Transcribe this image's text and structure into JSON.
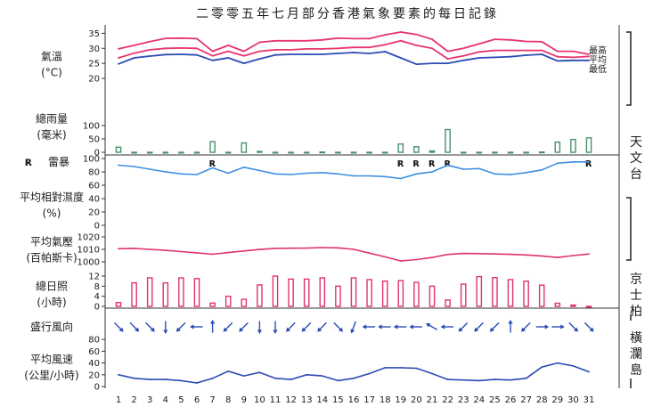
{
  "chart_data": {
    "type": "line",
    "title": "二零零五年七月部分香港氣象要素的每日記錄",
    "days": [
      1,
      2,
      3,
      4,
      5,
      6,
      7,
      8,
      9,
      10,
      11,
      12,
      13,
      14,
      15,
      16,
      17,
      18,
      19,
      20,
      21,
      22,
      23,
      24,
      25,
      26,
      27,
      28,
      29,
      30,
      31
    ],
    "station_labels": {
      "observatory": "天文台",
      "kings_park": "京士柏",
      "waglan": "橫瀾島"
    },
    "colors": {
      "max": "#e8336e",
      "mean": "#e8336e",
      "min": "#2b4bb5",
      "rain": "#4a8f6a",
      "humidity": "#3d8fe0",
      "pressure": "#e0336e",
      "sunshine": "#e0336e",
      "wind": "#2b4bb5"
    },
    "panels": {
      "temperature": {
        "label": [
          "氣溫",
          "(°C)"
        ],
        "ticks": [
          20,
          25,
          30,
          35
        ],
        "ylim": [
          20,
          36
        ],
        "legend": [
          "最高",
          "平均",
          "最低"
        ],
        "max": [
          29.8,
          31.0,
          32.2,
          33.3,
          33.4,
          33.2,
          29.0,
          31.0,
          29.0,
          32.0,
          32.5,
          32.5,
          32.5,
          32.8,
          33.4,
          33.2,
          33.2,
          34.5,
          35.4,
          34.6,
          33.0,
          29.0,
          30.0,
          31.5,
          33.0,
          32.8,
          32.3,
          32.2,
          29.0,
          29.0,
          28.0
        ],
        "mean": [
          26.8,
          28.4,
          29.5,
          30.0,
          30.1,
          30.0,
          27.5,
          29.0,
          27.5,
          29.0,
          29.5,
          29.5,
          29.8,
          29.8,
          30.0,
          30.3,
          30.3,
          31.2,
          32.5,
          31.0,
          30.0,
          26.5,
          27.5,
          28.8,
          29.3,
          29.3,
          29.3,
          29.3,
          27.2,
          27.0,
          27.3
        ],
        "min": [
          24.8,
          26.8,
          27.4,
          27.9,
          28.0,
          27.8,
          26.0,
          26.8,
          25.0,
          26.5,
          27.8,
          28.0,
          28.0,
          28.0,
          28.3,
          28.6,
          28.3,
          28.9,
          26.8,
          24.7,
          25.0,
          25.0,
          26.0,
          26.8,
          27.0,
          27.2,
          27.7,
          28.0,
          25.8,
          26.0,
          26.0
        ]
      },
      "rainfall": {
        "label": [
          "總雨量",
          "(毫米)"
        ],
        "ticks": [
          0,
          50,
          100
        ],
        "ylim": [
          0,
          110
        ],
        "values": [
          19,
          0,
          0,
          0,
          0,
          0,
          40,
          0,
          35,
          3,
          0,
          0,
          0,
          1,
          0,
          0,
          0,
          0,
          31,
          21,
          5,
          85,
          0,
          0,
          0,
          0,
          0,
          1,
          38,
          48,
          54
        ]
      },
      "thunderstorm": {
        "label": "雷暴",
        "days": [
          7,
          19,
          20,
          21,
          22,
          31
        ]
      },
      "humidity": {
        "label": [
          "平均相對濕度",
          "(%)"
        ],
        "ticks": [
          0,
          20,
          40,
          60,
          80,
          100
        ],
        "ylim": [
          0,
          100
        ],
        "values": [
          90,
          88,
          84,
          80,
          77,
          76,
          86,
          78,
          87,
          82,
          77,
          76,
          78,
          79,
          77,
          74,
          74,
          73,
          70,
          77,
          80,
          90,
          84,
          85,
          77,
          76,
          79,
          83,
          93,
          95,
          95
        ]
      },
      "pressure": {
        "label": [
          "平均氣壓",
          "(百帕斯卡)"
        ],
        "ticks": [
          1000,
          1010,
          1020
        ],
        "ylim": [
          1000,
          1020
        ],
        "values": [
          1010.5,
          1010.8,
          1010.0,
          1009.2,
          1008.2,
          1007.2,
          1006.1,
          1007.4,
          1008.7,
          1009.9,
          1010.8,
          1010.9,
          1011.0,
          1011.4,
          1011.2,
          1010.0,
          1007.0,
          1004.0,
          1000.7,
          1001.8,
          1003.5,
          1005.9,
          1006.7,
          1006.6,
          1006.3,
          1006.0,
          1005.5,
          1004.7,
          1003.5,
          1005.0,
          1006.3
        ]
      },
      "sunshine": {
        "label": [
          "總日照",
          "(小時)"
        ],
        "ticks": [
          0,
          4,
          8,
          12
        ],
        "ylim": [
          0,
          12
        ],
        "values": [
          1.5,
          9.3,
          11.3,
          9.3,
          11.3,
          11.0,
          1.3,
          4.0,
          2.8,
          8.5,
          12.0,
          10.8,
          10.8,
          11.3,
          8.0,
          11.3,
          10.6,
          10.0,
          10.2,
          9.5,
          8.0,
          2.5,
          8.8,
          11.8,
          11.4,
          10.6,
          10.0,
          8.4,
          1.2,
          0.5,
          0
        ]
      },
      "wind_direction": {
        "label": "盛行風向",
        "bearing_deg": [
          315,
          315,
          315,
          0,
          45,
          90,
          180,
          45,
          45,
          0,
          0,
          45,
          45,
          45,
          315,
          20,
          90,
          90,
          90,
          90,
          120,
          90,
          45,
          45,
          45,
          180,
          45,
          270,
          270,
          315,
          315
        ]
      },
      "wind_speed": {
        "label": [
          "平均風速",
          "(公里/小時)"
        ],
        "ticks": [
          0,
          20,
          40,
          60,
          80
        ],
        "ylim": [
          0,
          100
        ],
        "values": [
          20,
          14,
          12,
          12,
          10,
          6,
          14,
          26,
          18,
          24,
          14,
          12,
          20,
          18,
          10,
          14,
          22,
          32,
          32,
          31,
          22,
          12,
          11,
          10,
          12,
          11,
          14,
          33,
          40,
          35,
          25
        ]
      }
    }
  }
}
